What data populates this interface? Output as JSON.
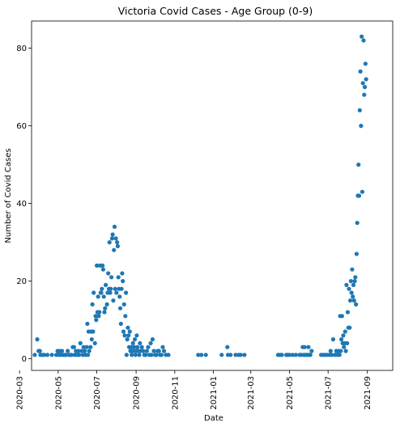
{
  "chart_data": {
    "type": "scatter",
    "title": "Victoria Covid Cases - Age Group (0-9)",
    "xlabel": "Date",
    "ylabel": "Number of Covid Cases",
    "x_ticks": [
      "2020-03",
      "2020-05",
      "2020-07",
      "2020-09",
      "2020-11",
      "2021-01",
      "2021-03",
      "2021-05",
      "2021-07",
      "2021-09"
    ],
    "y_ticks": [
      0,
      20,
      40,
      60,
      80
    ],
    "xlim": [
      "2020-03-20",
      "2021-10-11"
    ],
    "ylim": [
      -3,
      87
    ],
    "grid": false,
    "legend": "none",
    "marker_color": "#1f77b4",
    "points": [
      [
        "2020-03-25",
        1
      ],
      [
        "2020-03-29",
        5
      ],
      [
        "2020-03-31",
        2
      ],
      [
        "2020-04-02",
        2
      ],
      [
        "2020-04-03",
        1
      ],
      [
        "2020-04-06",
        1
      ],
      [
        "2020-04-09",
        1
      ],
      [
        "2020-04-14",
        1
      ],
      [
        "2020-04-21",
        1
      ],
      [
        "2020-04-28",
        1
      ],
      [
        "2020-04-30",
        2
      ],
      [
        "2020-05-02",
        1
      ],
      [
        "2020-05-03",
        2
      ],
      [
        "2020-05-05",
        1
      ],
      [
        "2020-05-07",
        2
      ],
      [
        "2020-05-09",
        1
      ],
      [
        "2020-05-11",
        1
      ],
      [
        "2020-05-13",
        1
      ],
      [
        "2020-05-16",
        2
      ],
      [
        "2020-05-18",
        1
      ],
      [
        "2020-05-20",
        1
      ],
      [
        "2020-05-22",
        1
      ],
      [
        "2020-05-24",
        3
      ],
      [
        "2020-05-26",
        3
      ],
      [
        "2020-05-27",
        1
      ],
      [
        "2020-05-29",
        2
      ],
      [
        "2020-05-31",
        1
      ],
      [
        "2020-06-02",
        2
      ],
      [
        "2020-06-03",
        1
      ],
      [
        "2020-06-05",
        4
      ],
      [
        "2020-06-07",
        2
      ],
      [
        "2020-06-09",
        1
      ],
      [
        "2020-06-10",
        3
      ],
      [
        "2020-06-12",
        2
      ],
      [
        "2020-06-13",
        1
      ],
      [
        "2020-06-15",
        3
      ],
      [
        "2020-06-16",
        9
      ],
      [
        "2020-06-17",
        1
      ],
      [
        "2020-06-18",
        7
      ],
      [
        "2020-06-19",
        2
      ],
      [
        "2020-06-21",
        3
      ],
      [
        "2020-06-22",
        7
      ],
      [
        "2020-06-23",
        5
      ],
      [
        "2020-06-24",
        14
      ],
      [
        "2020-06-25",
        7
      ],
      [
        "2020-06-26",
        17
      ],
      [
        "2020-06-28",
        4
      ],
      [
        "2020-06-30",
        10
      ],
      [
        "2020-06-29",
        11
      ],
      [
        "2020-07-01",
        24
      ],
      [
        "2020-07-02",
        12
      ],
      [
        "2020-07-03",
        16
      ],
      [
        "2020-07-04",
        11
      ],
      [
        "2020-07-05",
        12
      ],
      [
        "2020-07-06",
        24
      ],
      [
        "2020-07-07",
        17
      ],
      [
        "2020-07-08",
        17
      ],
      [
        "2020-07-09",
        18
      ],
      [
        "2020-07-10",
        24
      ],
      [
        "2020-07-11",
        23
      ],
      [
        "2020-07-12",
        16
      ],
      [
        "2020-07-13",
        12
      ],
      [
        "2020-07-14",
        13
      ],
      [
        "2020-07-15",
        19
      ],
      [
        "2020-07-17",
        14
      ],
      [
        "2020-07-18",
        17
      ],
      [
        "2020-07-19",
        22
      ],
      [
        "2020-07-20",
        18
      ],
      [
        "2020-07-21",
        30
      ],
      [
        "2020-07-22",
        17
      ],
      [
        "2020-07-23",
        18
      ],
      [
        "2020-07-24",
        21
      ],
      [
        "2020-07-25",
        31
      ],
      [
        "2020-07-26",
        32
      ],
      [
        "2020-07-27",
        15
      ],
      [
        "2020-07-28",
        28
      ],
      [
        "2020-07-29",
        34
      ],
      [
        "2020-07-30",
        18
      ],
      [
        "2020-07-31",
        31
      ],
      [
        "2020-08-01",
        17
      ],
      [
        "2020-08-02",
        30
      ],
      [
        "2020-08-03",
        29
      ],
      [
        "2020-08-04",
        21
      ],
      [
        "2020-08-05",
        18
      ],
      [
        "2020-08-06",
        16
      ],
      [
        "2020-08-07",
        13
      ],
      [
        "2020-08-08",
        9
      ],
      [
        "2020-08-09",
        18
      ],
      [
        "2020-08-10",
        22
      ],
      [
        "2020-08-11",
        20
      ],
      [
        "2020-08-12",
        7
      ],
      [
        "2020-08-13",
        14
      ],
      [
        "2020-08-14",
        6
      ],
      [
        "2020-08-15",
        11
      ],
      [
        "2020-08-16",
        17
      ],
      [
        "2020-08-17",
        1
      ],
      [
        "2020-08-18",
        5
      ],
      [
        "2020-08-19",
        8
      ],
      [
        "2020-08-20",
        6
      ],
      [
        "2020-08-21",
        3
      ],
      [
        "2020-08-22",
        7
      ],
      [
        "2020-08-23",
        2
      ],
      [
        "2020-08-24",
        3
      ],
      [
        "2020-08-25",
        1
      ],
      [
        "2020-08-26",
        2
      ],
      [
        "2020-08-27",
        4
      ],
      [
        "2020-08-28",
        2
      ],
      [
        "2020-08-29",
        3
      ],
      [
        "2020-08-30",
        5
      ],
      [
        "2020-08-31",
        1
      ],
      [
        "2020-09-01",
        2
      ],
      [
        "2020-09-02",
        6
      ],
      [
        "2020-09-03",
        3
      ],
      [
        "2020-09-04",
        2
      ],
      [
        "2020-09-06",
        1
      ],
      [
        "2020-09-07",
        4
      ],
      [
        "2020-09-08",
        2
      ],
      [
        "2020-09-10",
        3
      ],
      [
        "2020-09-12",
        2
      ],
      [
        "2020-09-14",
        1
      ],
      [
        "2020-09-16",
        1
      ],
      [
        "2020-09-18",
        2
      ],
      [
        "2020-09-20",
        3
      ],
      [
        "2020-09-22",
        1
      ],
      [
        "2020-09-24",
        4
      ],
      [
        "2020-09-25",
        1
      ],
      [
        "2020-09-27",
        5
      ],
      [
        "2020-09-29",
        2
      ],
      [
        "2020-10-01",
        1
      ],
      [
        "2020-10-03",
        1
      ],
      [
        "2020-10-05",
        2
      ],
      [
        "2020-10-07",
        2
      ],
      [
        "2020-10-09",
        1
      ],
      [
        "2020-10-11",
        1
      ],
      [
        "2020-10-13",
        3
      ],
      [
        "2020-10-15",
        2
      ],
      [
        "2020-10-18",
        1
      ],
      [
        "2020-10-22",
        1
      ],
      [
        "2020-12-08",
        1
      ],
      [
        "2020-12-13",
        1
      ],
      [
        "2020-12-20",
        1
      ],
      [
        "2021-01-14",
        1
      ],
      [
        "2021-01-23",
        3
      ],
      [
        "2021-01-24",
        1
      ],
      [
        "2021-01-28",
        1
      ],
      [
        "2021-02-05",
        1
      ],
      [
        "2021-02-10",
        1
      ],
      [
        "2021-02-13",
        1
      ],
      [
        "2021-02-19",
        1
      ],
      [
        "2021-04-13",
        1
      ],
      [
        "2021-04-16",
        1
      ],
      [
        "2021-04-19",
        1
      ],
      [
        "2021-04-26",
        1
      ],
      [
        "2021-04-28",
        1
      ],
      [
        "2021-05-01",
        1
      ],
      [
        "2021-05-06",
        1
      ],
      [
        "2021-05-11",
        1
      ],
      [
        "2021-05-17",
        1
      ],
      [
        "2021-05-20",
        1
      ],
      [
        "2021-05-22",
        3
      ],
      [
        "2021-05-24",
        1
      ],
      [
        "2021-05-25",
        3
      ],
      [
        "2021-05-27",
        1
      ],
      [
        "2021-05-29",
        1
      ],
      [
        "2021-05-31",
        3
      ],
      [
        "2021-06-01",
        1
      ],
      [
        "2021-06-03",
        1
      ],
      [
        "2021-06-05",
        2
      ],
      [
        "2021-06-20",
        1
      ],
      [
        "2021-06-23",
        1
      ],
      [
        "2021-06-26",
        1
      ],
      [
        "2021-06-29",
        1
      ],
      [
        "2021-07-03",
        1
      ],
      [
        "2021-07-05",
        2
      ],
      [
        "2021-07-07",
        1
      ],
      [
        "2021-07-09",
        5
      ],
      [
        "2021-07-12",
        1
      ],
      [
        "2021-07-14",
        2
      ],
      [
        "2021-07-16",
        1
      ],
      [
        "2021-07-17",
        2
      ],
      [
        "2021-07-19",
        1
      ],
      [
        "2021-07-20",
        11
      ],
      [
        "2021-07-21",
        2
      ],
      [
        "2021-07-22",
        5
      ],
      [
        "2021-07-23",
        11
      ],
      [
        "2021-07-24",
        4
      ],
      [
        "2021-07-25",
        6
      ],
      [
        "2021-07-26",
        3
      ],
      [
        "2021-07-27",
        4
      ],
      [
        "2021-07-28",
        7
      ],
      [
        "2021-07-29",
        2
      ],
      [
        "2021-07-30",
        19
      ],
      [
        "2021-07-31",
        4
      ],
      [
        "2021-08-01",
        12
      ],
      [
        "2021-08-02",
        8
      ],
      [
        "2021-08-03",
        18
      ],
      [
        "2021-08-04",
        8
      ],
      [
        "2021-08-05",
        15
      ],
      [
        "2021-08-06",
        20
      ],
      [
        "2021-08-07",
        17
      ],
      [
        "2021-08-08",
        23
      ],
      [
        "2021-08-09",
        16
      ],
      [
        "2021-08-10",
        19
      ],
      [
        "2021-08-11",
        15
      ],
      [
        "2021-08-12",
        20
      ],
      [
        "2021-08-13",
        21
      ],
      [
        "2021-08-14",
        14
      ],
      [
        "2021-08-15",
        27
      ],
      [
        "2021-08-16",
        35
      ],
      [
        "2021-08-17",
        42
      ],
      [
        "2021-08-18",
        50
      ],
      [
        "2021-08-19",
        42
      ],
      [
        "2021-08-20",
        64
      ],
      [
        "2021-08-21",
        74
      ],
      [
        "2021-08-22",
        60
      ],
      [
        "2021-08-23",
        83
      ],
      [
        "2021-08-24",
        43
      ],
      [
        "2021-08-25",
        71
      ],
      [
        "2021-08-26",
        82
      ],
      [
        "2021-08-27",
        68
      ],
      [
        "2021-08-28",
        70
      ],
      [
        "2021-08-29",
        76
      ],
      [
        "2021-08-30",
        72
      ]
    ]
  }
}
